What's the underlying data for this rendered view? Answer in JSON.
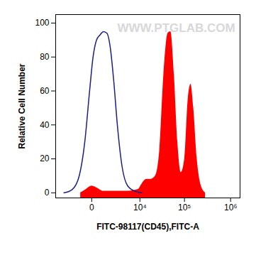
{
  "chart_data": {
    "type": "histogram",
    "xlabel": "FITC-98117(CD45),FITC-A",
    "ylabel": "Relative Cell Number",
    "annotations": [
      "WWW.PTGLAB.COM"
    ],
    "log": "x",
    "xlim": [
      -5000,
      1600000
    ],
    "xticks": [
      0,
      {
        "value": 10000,
        "label": "10⁴"
      },
      {
        "value": 100000,
        "label": "10⁵"
      },
      {
        "value": 1000000,
        "label": "10⁶"
      }
    ],
    "ylim": [
      -3,
      105
    ],
    "yticks": [
      0,
      20,
      40,
      60,
      80,
      100
    ],
    "series": [
      {
        "type": "area",
        "color": "#ff0000",
        "x": [
          -737,
          -318,
          0,
          273,
          797,
          2014,
          5008,
          9080,
          10970,
          14240,
          17750,
          22860,
          28340,
          35070,
          43380,
          49940,
          59480,
          70960,
          84460,
          100600,
          119700,
          137500,
          158000,
          187900,
          231300,
          284600
        ],
        "values": [
          0,
          2,
          4,
          3,
          1,
          1,
          1,
          2,
          5,
          8,
          8,
          10,
          25,
          70,
          94,
          95,
          70,
          30,
          12,
          20,
          55,
          64,
          50,
          20,
          4,
          0
        ]
      },
      {
        "type": "line",
        "color": "#1a1f8c",
        "x": [
          -2970,
          -1630,
          -860,
          -410,
          -110,
          71,
          273,
          513,
          797,
          1135,
          1537,
          2014,
          2582,
          3560,
          5008,
          7482,
          10970
        ],
        "values": [
          0,
          2,
          10,
          30,
          60,
          80,
          90,
          93,
          95,
          94,
          85,
          65,
          40,
          15,
          4,
          1,
          0
        ]
      }
    ]
  }
}
